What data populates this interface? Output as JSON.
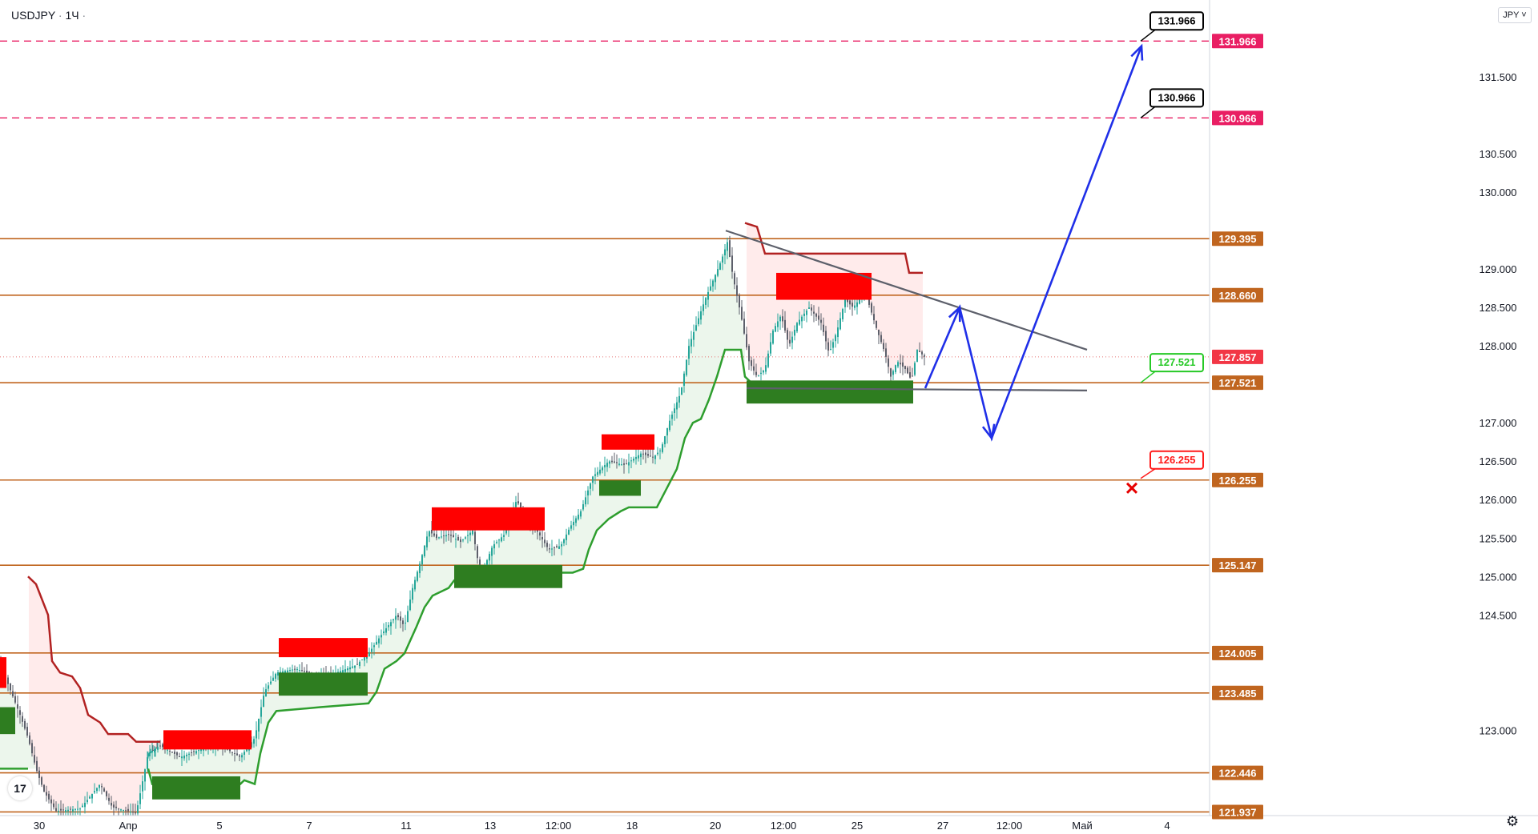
{
  "header": {
    "symbol": "USDJPY",
    "interval": "1Ч",
    "currency": "JPY"
  },
  "icons": {
    "logo": "tradingview-logo-icon",
    "settings": "gear-icon",
    "invalidation": "cross-marker-icon"
  },
  "colors": {
    "resistance": "#c0651f",
    "target_line": "#e91e63",
    "up_candle": "#26a69a",
    "candle": "#5d606b",
    "supply_zone": "#ff0000",
    "demand_zone": "#2e7d20",
    "stop_line": "#2e9e2e",
    "stop_line_down": "#b22222",
    "forecast": "#1f2fe8",
    "trendline": "#5d606b",
    "tag_green": "#26c926",
    "tag_red": "#ff1a1a"
  },
  "chart_data": {
    "type": "line",
    "symbol": "USDJPY",
    "timeframe": "1Ч",
    "y_range": [
      121.9,
      132.5
    ],
    "y_ticks": [
      "121.937",
      "122.446",
      "123.000",
      "123.485",
      "124.005",
      "124.500",
      "125.000",
      "125.147",
      "125.500",
      "126.000",
      "126.255",
      "126.500",
      "127.000",
      "127.521",
      "127.857",
      "128.000",
      "128.500",
      "128.660",
      "129.000",
      "129.395",
      "130.000",
      "130.500",
      "130.966",
      "131.500",
      "131.966"
    ],
    "x_ticks": [
      "30",
      "Апр",
      "5",
      "7",
      "11",
      "13",
      "12:00",
      "18",
      "20",
      "12:00",
      "25",
      "27",
      "12:00",
      "Май",
      "4"
    ],
    "horizontal_levels": [
      {
        "price": 129.395,
        "label": "129.395"
      },
      {
        "price": 128.66,
        "label": "128.660"
      },
      {
        "price": 127.521,
        "label": "127.521"
      },
      {
        "price": 126.255,
        "label": "126.255"
      },
      {
        "price": 125.147,
        "label": "125.147"
      },
      {
        "price": 124.005,
        "label": "124.005"
      },
      {
        "price": 123.485,
        "label": "123.485"
      },
      {
        "price": 122.446,
        "label": "122.446"
      },
      {
        "price": 121.937,
        "label": "121.937"
      }
    ],
    "target_levels": [
      {
        "price": 131.966,
        "label": "131.966"
      },
      {
        "price": 130.966,
        "label": "130.966"
      }
    ],
    "last_price": {
      "price": 127.857,
      "label": "127.857"
    },
    "annotations": [
      {
        "label": "131.966",
        "style": "target"
      },
      {
        "label": "130.966",
        "style": "target"
      },
      {
        "label": "127.521",
        "style": "entry"
      },
      {
        "label": "126.255",
        "style": "stop"
      }
    ],
    "price_path": [
      [
        0,
        123.9
      ],
      [
        10,
        123.6
      ],
      [
        25,
        123.2
      ],
      [
        35,
        122.9
      ],
      [
        45,
        122.5
      ],
      [
        55,
        122.2
      ],
      [
        70,
        121.95
      ],
      [
        100,
        121.98
      ],
      [
        125,
        122.3
      ],
      [
        140,
        122.0
      ],
      [
        170,
        121.92
      ],
      [
        185,
        122.7
      ],
      [
        200,
        122.8
      ],
      [
        225,
        122.65
      ],
      [
        250,
        122.75
      ],
      [
        275,
        122.8
      ],
      [
        300,
        122.65
      ],
      [
        318,
        122.9
      ],
      [
        330,
        123.5
      ],
      [
        345,
        123.75
      ],
      [
        370,
        123.8
      ],
      [
        395,
        123.7
      ],
      [
        420,
        123.75
      ],
      [
        445,
        123.85
      ],
      [
        460,
        124.0
      ],
      [
        480,
        124.3
      ],
      [
        495,
        124.5
      ],
      [
        505,
        124.35
      ],
      [
        515,
        124.85
      ],
      [
        525,
        125.2
      ],
      [
        535,
        125.6
      ],
      [
        545,
        125.5
      ],
      [
        560,
        125.55
      ],
      [
        575,
        125.45
      ],
      [
        590,
        125.6
      ],
      [
        600,
        125.0
      ],
      [
        615,
        125.4
      ],
      [
        630,
        125.55
      ],
      [
        645,
        126.0
      ],
      [
        655,
        125.75
      ],
      [
        670,
        125.6
      ],
      [
        685,
        125.35
      ],
      [
        700,
        125.4
      ],
      [
        712,
        125.65
      ],
      [
        725,
        125.85
      ],
      [
        740,
        126.3
      ],
      [
        760,
        126.5
      ],
      [
        780,
        126.45
      ],
      [
        800,
        126.6
      ],
      [
        815,
        126.55
      ],
      [
        825,
        126.65
      ],
      [
        835,
        127.0
      ],
      [
        850,
        127.4
      ],
      [
        860,
        128.0
      ],
      [
        870,
        128.3
      ],
      [
        880,
        128.6
      ],
      [
        890,
        128.85
      ],
      [
        900,
        129.1
      ],
      [
        908,
        129.35
      ],
      [
        915,
        128.9
      ],
      [
        925,
        128.4
      ],
      [
        935,
        127.8
      ],
      [
        945,
        127.6
      ],
      [
        955,
        127.7
      ],
      [
        965,
        128.2
      ],
      [
        975,
        128.4
      ],
      [
        985,
        128.0
      ],
      [
        995,
        128.3
      ],
      [
        1010,
        128.5
      ],
      [
        1025,
        128.3
      ],
      [
        1035,
        127.9
      ],
      [
        1045,
        128.2
      ],
      [
        1055,
        128.6
      ],
      [
        1065,
        128.5
      ],
      [
        1080,
        128.7
      ],
      [
        1095,
        128.2
      ],
      [
        1105,
        127.9
      ],
      [
        1112,
        127.6
      ],
      [
        1120,
        127.8
      ],
      [
        1130,
        127.7
      ],
      [
        1138,
        127.55
      ],
      [
        1145,
        127.95
      ],
      [
        1155,
        127.85
      ]
    ],
    "trailing_stop_up": [
      [
        0,
        122.5
      ],
      [
        35,
        122.5
      ],
      [
        185,
        122.5
      ],
      [
        190,
        122.3
      ],
      [
        300,
        122.3
      ],
      [
        305,
        122.35
      ],
      [
        318,
        122.3
      ],
      [
        325,
        122.7
      ],
      [
        335,
        123.1
      ],
      [
        345,
        123.25
      ],
      [
        400,
        123.3
      ],
      [
        460,
        123.35
      ],
      [
        470,
        123.5
      ],
      [
        480,
        123.8
      ],
      [
        495,
        123.9
      ],
      [
        505,
        124.0
      ],
      [
        520,
        124.35
      ],
      [
        530,
        124.6
      ],
      [
        540,
        124.75
      ],
      [
        560,
        124.85
      ],
      [
        567,
        124.95
      ],
      [
        635,
        124.95
      ],
      [
        640,
        125.05
      ],
      [
        700,
        125.05
      ],
      [
        715,
        125.05
      ],
      [
        728,
        125.1
      ],
      [
        735,
        125.35
      ],
      [
        745,
        125.6
      ],
      [
        760,
        125.75
      ],
      [
        775,
        125.85
      ],
      [
        785,
        125.9
      ],
      [
        820,
        125.9
      ],
      [
        830,
        126.1
      ],
      [
        845,
        126.4
      ],
      [
        855,
        126.8
      ],
      [
        865,
        127.0
      ],
      [
        875,
        127.05
      ],
      [
        885,
        127.3
      ],
      [
        895,
        127.6
      ],
      [
        905,
        127.95
      ],
      [
        925,
        127.95
      ],
      [
        930,
        127.6
      ],
      [
        945,
        127.45
      ],
      [
        1140,
        127.45
      ]
    ],
    "trailing_stop_down": [
      [
        0,
        123.4
      ],
      [
        8,
        123.4
      ],
      [
        35,
        125.0
      ],
      [
        45,
        124.9
      ],
      [
        60,
        124.5
      ],
      [
        65,
        123.9
      ],
      [
        75,
        123.75
      ],
      [
        90,
        123.7
      ],
      [
        100,
        123.55
      ],
      [
        110,
        123.2
      ],
      [
        125,
        123.1
      ],
      [
        135,
        122.95
      ],
      [
        160,
        122.95
      ],
      [
        170,
        122.85
      ],
      [
        200,
        122.85
      ],
      [
        930,
        129.6
      ],
      [
        945,
        129.55
      ],
      [
        955,
        129.2
      ],
      [
        1130,
        129.2
      ],
      [
        1135,
        128.95
      ],
      [
        1152,
        128.95
      ]
    ],
    "supply_zones": [
      [
        0,
        123.95,
        8,
        123.55
      ],
      [
        204,
        123.0,
        314,
        122.75
      ],
      [
        348,
        124.2,
        459,
        123.95
      ],
      [
        539,
        125.9,
        680,
        125.6
      ],
      [
        751,
        126.85,
        817,
        126.65
      ],
      [
        969,
        128.95,
        1088,
        128.6
      ]
    ],
    "demand_zones": [
      [
        0,
        123.3,
        19,
        122.95
      ],
      [
        190,
        122.4,
        300,
        122.1
      ],
      [
        348,
        123.75,
        459,
        123.45
      ],
      [
        567,
        125.15,
        702,
        124.85
      ],
      [
        748,
        126.25,
        800,
        126.05
      ],
      [
        932,
        127.55,
        1140,
        127.25
      ]
    ],
    "trendlines": [
      [
        [
          906,
          129.5
        ],
        [
          1357,
          127.95
        ]
      ],
      [
        [
          932,
          127.45
        ],
        [
          1357,
          127.42
        ]
      ]
    ],
    "forecast_path": [
      [
        1155,
        127.45
      ],
      [
        1198,
        128.5
      ],
      [
        1238,
        126.8
      ],
      [
        1425,
        131.9
      ]
    ],
    "invalidation_marker": [
      1413,
      126.15
    ]
  }
}
